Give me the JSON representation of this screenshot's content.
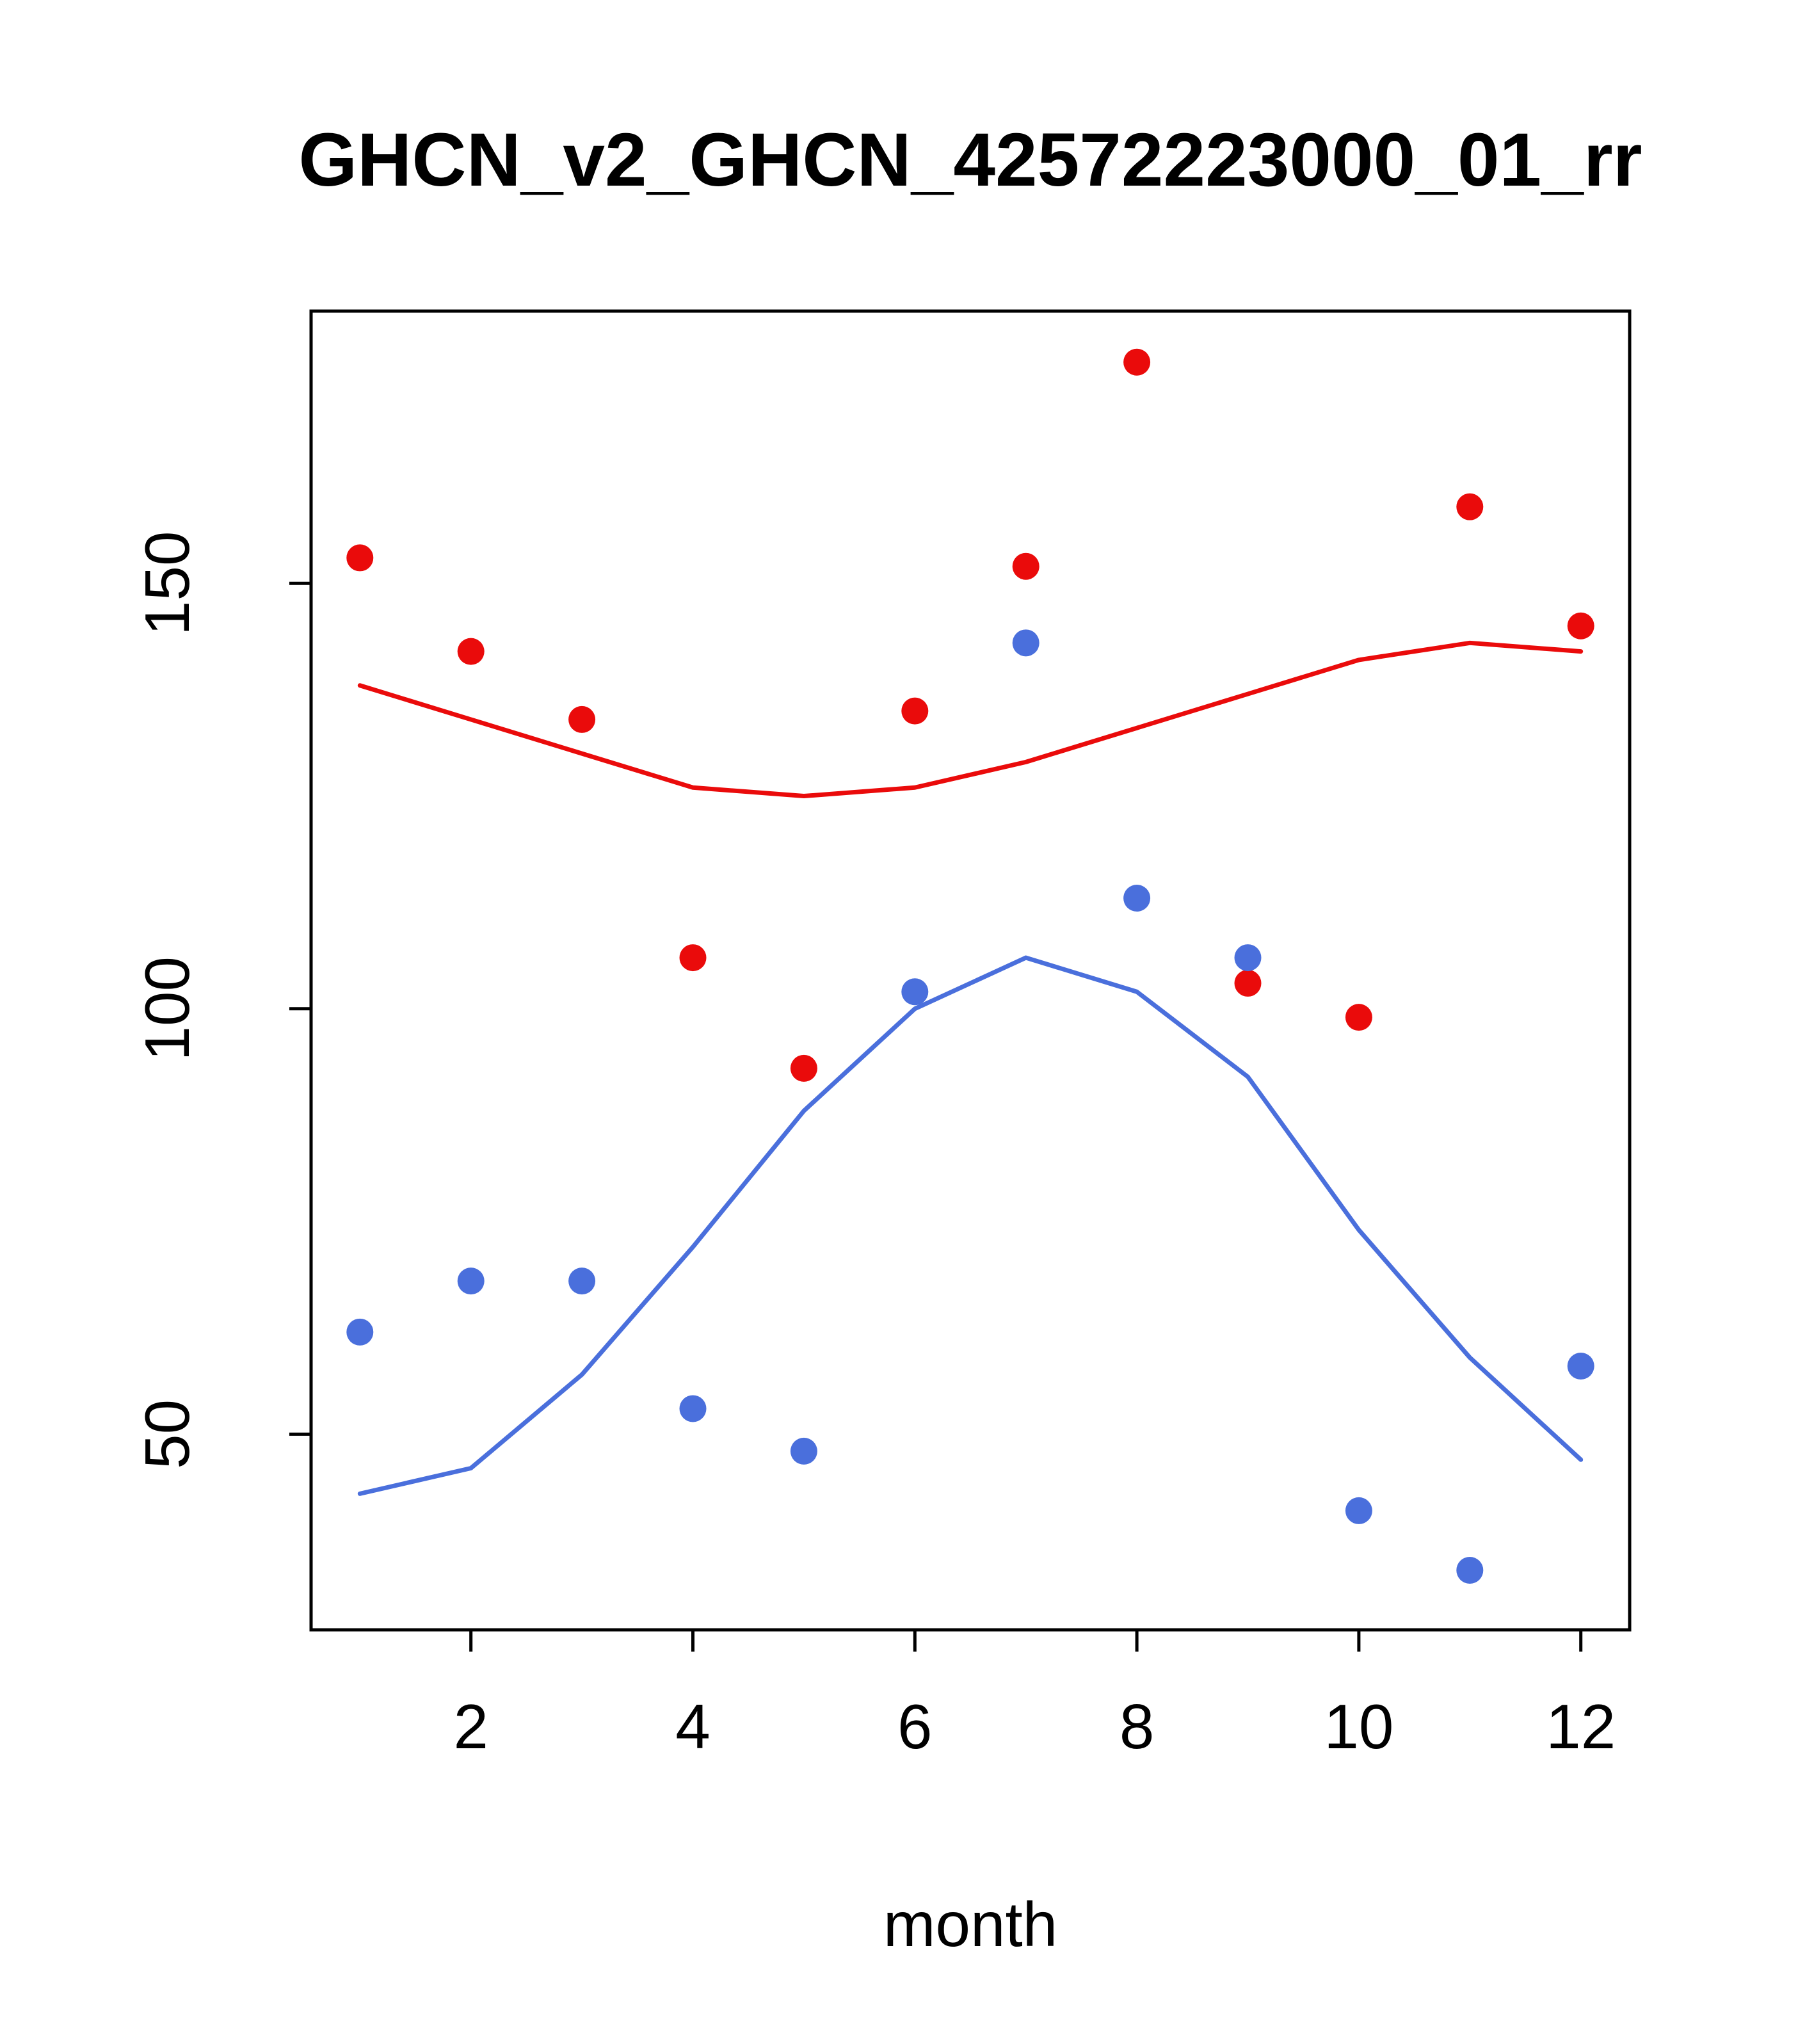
{
  "chart_data": {
    "type": "scatter",
    "title": "GHCN_v2_GHCN_42572223000_01_rr",
    "xlabel": "month",
    "ylabel": "",
    "xlim": [
      0.56,
      12.44
    ],
    "ylim": [
      27,
      182
    ],
    "x_ticks": [
      2,
      4,
      6,
      8,
      10,
      12
    ],
    "y_ticks": [
      50,
      100,
      150
    ],
    "grid": false,
    "legend": "none",
    "x": [
      1,
      2,
      3,
      4,
      5,
      6,
      7,
      8,
      9,
      10,
      11,
      12
    ],
    "series": [
      {
        "name": "red-observations",
        "kind": "points",
        "color": "#ea0b0b",
        "values": [
          153,
          142,
          134,
          106,
          93,
          135,
          152,
          176,
          103,
          99,
          159,
          145
        ]
      },
      {
        "name": "blue-observations",
        "kind": "points",
        "color": "#4a6fdc",
        "values": [
          62,
          68,
          68,
          53,
          48,
          102,
          143,
          113,
          106,
          41,
          34,
          58
        ]
      },
      {
        "name": "red-trend-line",
        "kind": "line",
        "color": "#ea0b0b",
        "values": [
          138,
          134,
          130,
          126,
          125,
          126,
          129,
          133,
          137,
          141,
          143,
          142
        ]
      },
      {
        "name": "blue-trend-line",
        "kind": "line",
        "color": "#4a6fdc",
        "values": [
          43,
          46,
          57,
          72,
          88,
          100,
          106,
          102,
          92,
          74,
          59,
          47
        ]
      }
    ]
  }
}
